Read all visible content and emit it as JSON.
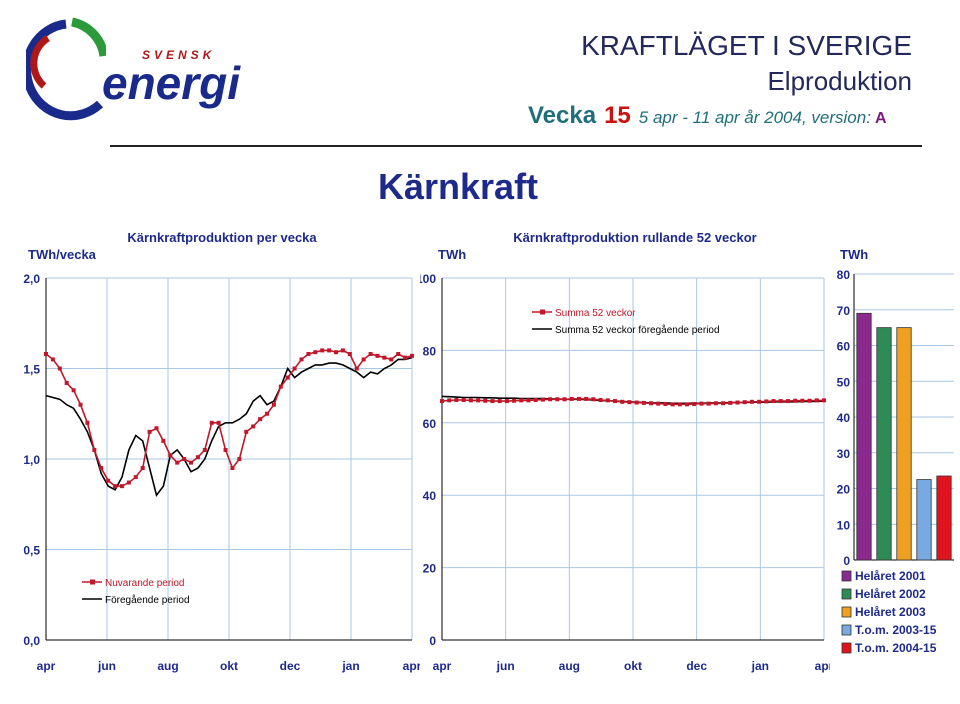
{
  "header": {
    "logo_top": "SVENSK",
    "logo_bottom": "energi",
    "title": "KRAFTLÄGET I SVERIGE",
    "subtitle": "Elproduktion",
    "week_label": "Vecka",
    "week_number": "15",
    "date_range": "5 apr - 11 apr år 2004, version:",
    "version": "A"
  },
  "section_title": "Kärnkraft",
  "colors": {
    "red": "#c0182a",
    "black": "#000000",
    "grid": "#a9c7e6",
    "title_blue": "#1d2a8a"
  },
  "chart_data": [
    {
      "type": "line",
      "title": "Kärnkraftproduktion  per vecka",
      "ylabel": "TWh/vecka",
      "ylim": [
        0,
        2
      ],
      "yticks": [
        "0,0",
        "0,5",
        "1,0",
        "1,5",
        "2,0"
      ],
      "x_ticks": [
        "apr",
        "jun",
        "aug",
        "okt",
        "dec",
        "jan",
        "apr"
      ],
      "grid": true,
      "legend_position": "bottom-left",
      "series": [
        {
          "name": "Nuvarande period",
          "color": "#c0182a",
          "marker": "square",
          "values": [
            1.58,
            1.55,
            1.5,
            1.42,
            1.38,
            1.3,
            1.2,
            1.05,
            0.95,
            0.88,
            0.85,
            0.85,
            0.87,
            0.9,
            0.95,
            1.15,
            1.17,
            1.1,
            1.02,
            0.98,
            1.0,
            0.98,
            1.01,
            1.05,
            1.2,
            1.2,
            1.05,
            0.95,
            1.0,
            1.15,
            1.18,
            1.22,
            1.25,
            1.3,
            1.4,
            1.45,
            1.5,
            1.55,
            1.58,
            1.59,
            1.6,
            1.6,
            1.59,
            1.6,
            1.58,
            1.5,
            1.55,
            1.58,
            1.57,
            1.56,
            1.55,
            1.58,
            1.56,
            1.57
          ]
        },
        {
          "name": "Föregående period",
          "color": "#000000",
          "marker": "none",
          "values": [
            1.35,
            1.34,
            1.33,
            1.3,
            1.28,
            1.22,
            1.15,
            1.05,
            0.92,
            0.85,
            0.83,
            0.9,
            1.05,
            1.13,
            1.1,
            0.95,
            0.8,
            0.85,
            1.02,
            1.05,
            1.0,
            0.93,
            0.95,
            1.0,
            1.1,
            1.18,
            1.2,
            1.2,
            1.22,
            1.25,
            1.32,
            1.35,
            1.3,
            1.32,
            1.4,
            1.5,
            1.45,
            1.48,
            1.5,
            1.52,
            1.52,
            1.53,
            1.53,
            1.52,
            1.5,
            1.48,
            1.45,
            1.48,
            1.47,
            1.5,
            1.52,
            1.55,
            1.55,
            1.56
          ]
        }
      ]
    },
    {
      "type": "line",
      "title": "Kärnkraftproduktion rullande 52 veckor",
      "ylabel": "TWh",
      "ylim": [
        0,
        100
      ],
      "yticks": [
        "0",
        "20",
        "40",
        "60",
        "80",
        "100"
      ],
      "x_ticks": [
        "apr",
        "jun",
        "aug",
        "okt",
        "dec",
        "jan",
        "apr"
      ],
      "grid": true,
      "legend_position": "top-left",
      "series": [
        {
          "name": "Summa 52 veckor",
          "color": "#c0182a",
          "marker": "square",
          "values": [
            66,
            66.2,
            66.3,
            66.3,
            66.2,
            66.2,
            66.1,
            66,
            66,
            66,
            66.1,
            66.2,
            66.2,
            66.3,
            66.4,
            66.5,
            66.5,
            66.5,
            66.6,
            66.6,
            66.6,
            66.5,
            66.3,
            66.2,
            66,
            65.8,
            65.7,
            65.6,
            65.5,
            65.4,
            65.3,
            65.2,
            65.1,
            65.1,
            65.1,
            65.2,
            65.3,
            65.3,
            65.4,
            65.4,
            65.5,
            65.6,
            65.7,
            65.8,
            65.8,
            65.9,
            66,
            66,
            66,
            66.1,
            66.1,
            66.1,
            66.2,
            66.2
          ]
        },
        {
          "name": "Summa 52 veckor föregående period",
          "color": "#000000",
          "marker": "none",
          "values": [
            67.3,
            67.2,
            67.1,
            67,
            67,
            67,
            66.9,
            66.9,
            66.8,
            66.8,
            66.8,
            66.7,
            66.7,
            66.7,
            66.7,
            66.6,
            66.6,
            66.5,
            66.5,
            66.5,
            66.4,
            66.3,
            66.2,
            66.1,
            66,
            65.9,
            65.8,
            65.7,
            65.6,
            65.5,
            65.5,
            65.5,
            65.4,
            65.4,
            65.4,
            65.4,
            65.4,
            65.5,
            65.5,
            65.5,
            65.6,
            65.6,
            65.6,
            65.7,
            65.7,
            65.7,
            65.8,
            65.8,
            65.8,
            65.8,
            65.9,
            65.9,
            65.9,
            66
          ]
        }
      ]
    },
    {
      "type": "bar",
      "ylabel": "TWh",
      "ylim": [
        0,
        80
      ],
      "yticks": [
        "0",
        "10",
        "20",
        "30",
        "40",
        "50",
        "60",
        "70",
        "80"
      ],
      "grid": true,
      "legend_position": "bottom",
      "categories": [
        "Helåret 2001",
        "Helåret 2002",
        "Helåret 2003",
        "T.o.m. 2003-15",
        "T.o.m. 2004-15"
      ],
      "values": [
        69,
        65,
        65,
        22.5,
        23.5
      ],
      "colors": [
        "#8a2a8e",
        "#2e8b57",
        "#f0a020",
        "#7aa8e0",
        "#e0141e"
      ]
    }
  ]
}
